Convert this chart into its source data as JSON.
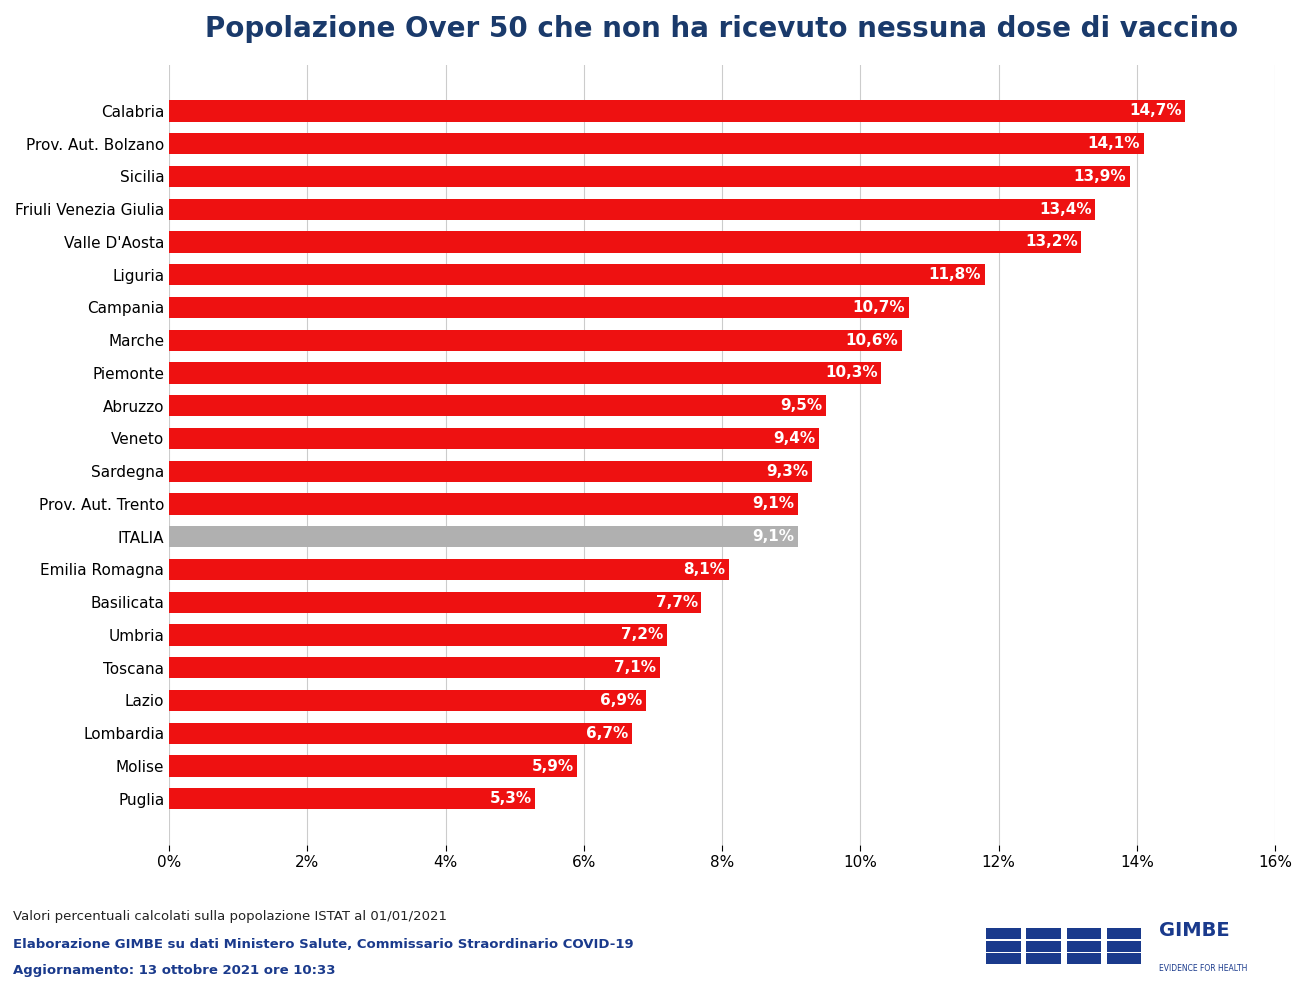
{
  "title": "Popolazione Over 50 che non ha ricevuto nessuna dose di vaccino",
  "title_color": "#1a3a6b",
  "title_fontsize": 20,
  "categories": [
    "Calabria",
    "Prov. Aut. Bolzano",
    "Sicilia",
    "Friuli Venezia Giulia",
    "Valle D'Aosta",
    "Liguria",
    "Campania",
    "Marche",
    "Piemonte",
    "Abruzzo",
    "Veneto",
    "Sardegna",
    "Prov. Aut. Trento",
    "ITALIA",
    "Emilia Romagna",
    "Basilicata",
    "Umbria",
    "Toscana",
    "Lazio",
    "Lombardia",
    "Molise",
    "Puglia"
  ],
  "values": [
    14.7,
    14.1,
    13.9,
    13.4,
    13.2,
    11.8,
    10.7,
    10.6,
    10.3,
    9.5,
    9.4,
    9.3,
    9.1,
    9.1,
    8.1,
    7.7,
    7.2,
    7.1,
    6.9,
    6.7,
    5.9,
    5.3
  ],
  "bar_colors": [
    "#ee1111",
    "#ee1111",
    "#ee1111",
    "#ee1111",
    "#ee1111",
    "#ee1111",
    "#ee1111",
    "#ee1111",
    "#ee1111",
    "#ee1111",
    "#ee1111",
    "#ee1111",
    "#ee1111",
    "#b0b0b0",
    "#ee1111",
    "#ee1111",
    "#ee1111",
    "#ee1111",
    "#ee1111",
    "#ee1111",
    "#ee1111",
    "#ee1111"
  ],
  "label_colors": [
    "#ffffff",
    "#ffffff",
    "#ffffff",
    "#ffffff",
    "#ffffff",
    "#ffffff",
    "#ffffff",
    "#ffffff",
    "#ffffff",
    "#ffffff",
    "#ffffff",
    "#ffffff",
    "#ffffff",
    "#ffffff",
    "#ffffff",
    "#ffffff",
    "#ffffff",
    "#ffffff",
    "#ffffff",
    "#ffffff",
    "#ffffff",
    "#ffffff"
  ],
  "value_labels": [
    "14,7%",
    "14,1%",
    "13,9%",
    "13,4%",
    "13,2%",
    "11,8%",
    "10,7%",
    "10,6%",
    "10,3%",
    "9,5%",
    "9,4%",
    "9,3%",
    "9,1%",
    "9,1%",
    "8,1%",
    "7,7%",
    "7,2%",
    "7,1%",
    "6,9%",
    "6,7%",
    "5,9%",
    "5,3%"
  ],
  "xlim": [
    0,
    16
  ],
  "xticks": [
    0,
    2,
    4,
    6,
    8,
    10,
    12,
    14,
    16
  ],
  "xtick_labels": [
    "0%",
    "2%",
    "4%",
    "6%",
    "8%",
    "10%",
    "12%",
    "14%",
    "16%"
  ],
  "background_color": "#ffffff",
  "note1": "Valori percentuali calcolati sulla popolazione ISTAT al 01/01/2021",
  "note2": "Elaborazione GIMBE su dati Ministero Salute, Commissario Straordinario COVID-19",
  "note3": "Aggiornamento: 13 ottobre 2021 ore 10:33",
  "note1_color": "#222222",
  "note2_color": "#1a3a8c",
  "note3_color": "#1a3a8c",
  "bar_height": 0.65,
  "label_fontsize": 11,
  "tick_fontsize": 11,
  "category_fontsize": 11
}
